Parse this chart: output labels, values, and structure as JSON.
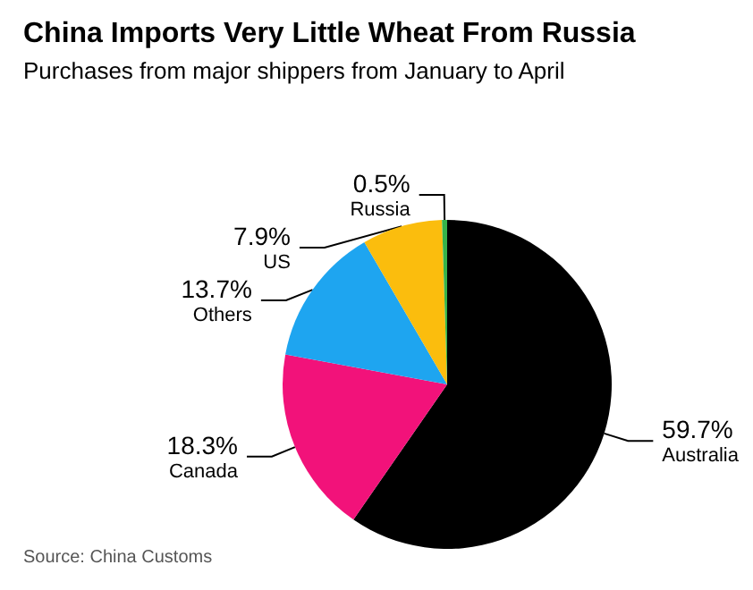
{
  "chart_data": {
    "type": "pie",
    "title": "China Imports Very Little Wheat From Russia",
    "subtitle": "Purchases from major shippers from January to April",
    "categories": [
      "Australia",
      "Canada",
      "Others",
      "US",
      "Russia"
    ],
    "values": [
      59.7,
      18.3,
      13.7,
      7.9,
      0.5
    ],
    "value_labels": [
      "59.7%",
      "18.3%",
      "13.7%",
      "7.9%",
      "0.5%"
    ],
    "colors": [
      "#000000",
      "#f2127a",
      "#1ea5f0",
      "#fbbd0d",
      "#36b34a"
    ],
    "annotations": [
      "Source: China Customs"
    ]
  }
}
